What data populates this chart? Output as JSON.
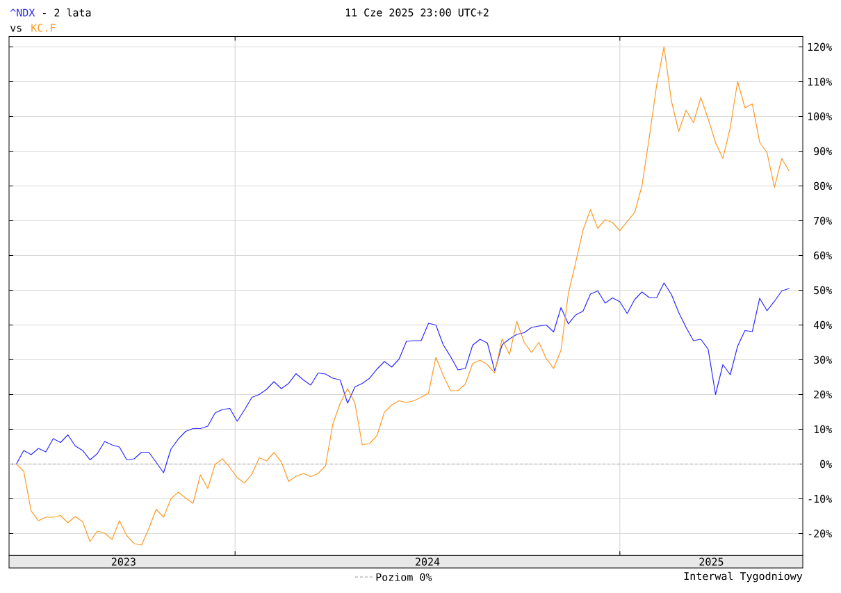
{
  "chart_data": {
    "type": "line",
    "title": "- 2 lata",
    "annotations": [
      "vs",
      "11 Cze 2025 23:00 UTC+2",
      "Interwal Tygodniowy"
    ],
    "x": [
      "2023-06-07",
      "2023-06-14",
      "2023-06-21",
      "2023-06-28",
      "2023-07-05",
      "2023-07-12",
      "2023-07-19",
      "2023-07-26",
      "2023-08-02",
      "2023-08-09",
      "2023-08-16",
      "2023-08-23",
      "2023-08-30",
      "2023-09-06",
      "2023-09-13",
      "2023-09-20",
      "2023-09-27",
      "2023-10-04",
      "2023-10-11",
      "2023-10-18",
      "2023-10-25",
      "2023-11-01",
      "2023-11-08",
      "2023-11-15",
      "2023-11-22",
      "2023-11-29",
      "2023-12-06",
      "2023-12-13",
      "2023-12-20",
      "2023-12-27",
      "2024-01-03",
      "2024-01-10",
      "2024-01-17",
      "2024-01-24",
      "2024-01-31",
      "2024-02-07",
      "2024-02-14",
      "2024-02-21",
      "2024-02-28",
      "2024-03-06",
      "2024-03-13",
      "2024-03-20",
      "2024-03-27",
      "2024-04-03",
      "2024-04-10",
      "2024-04-17",
      "2024-04-24",
      "2024-05-01",
      "2024-05-08",
      "2024-05-15",
      "2024-05-22",
      "2024-05-29",
      "2024-06-05",
      "2024-06-12",
      "2024-06-19",
      "2024-06-26",
      "2024-07-03",
      "2024-07-10",
      "2024-07-17",
      "2024-07-24",
      "2024-07-31",
      "2024-08-07",
      "2024-08-14",
      "2024-08-21",
      "2024-08-28",
      "2024-09-04",
      "2024-09-11",
      "2024-09-18",
      "2024-09-25",
      "2024-10-02",
      "2024-10-09",
      "2024-10-16",
      "2024-10-23",
      "2024-10-30",
      "2024-11-06",
      "2024-11-13",
      "2024-11-20",
      "2024-11-27",
      "2024-12-04",
      "2024-12-11",
      "2024-12-18",
      "2024-12-25",
      "2025-01-01",
      "2025-01-08",
      "2025-01-15",
      "2025-01-22",
      "2025-01-29",
      "2025-02-05",
      "2025-02-12",
      "2025-02-19",
      "2025-02-26",
      "2025-03-05",
      "2025-03-12",
      "2025-03-19",
      "2025-03-26",
      "2025-04-02",
      "2025-04-09",
      "2025-04-16",
      "2025-04-23",
      "2025-04-30",
      "2025-05-07",
      "2025-05-14",
      "2025-05-21",
      "2025-05-28",
      "2025-06-04",
      "2025-06-11"
    ],
    "series": [
      {
        "name": "^NDX",
        "color": "#2b2bff",
        "values": [
          0,
          3.9,
          2.7,
          4.5,
          3.5,
          7.3,
          6.2,
          8.4,
          5.2,
          3.9,
          1.2,
          3.0,
          6.5,
          5.5,
          4.9,
          1.2,
          1.5,
          3.4,
          3.4,
          0.5,
          -2.5,
          4.3,
          7.2,
          9.4,
          10.2,
          10.2,
          10.9,
          14.7,
          15.7,
          16.0,
          12.3,
          15.6,
          19.2,
          20.0,
          21.5,
          23.7,
          21.7,
          23.2,
          26.0,
          24.2,
          22.7,
          26.2,
          25.9,
          24.7,
          24.2,
          17.5,
          22.2,
          23.2,
          24.7,
          27.3,
          29.5,
          27.9,
          30.2,
          35.3,
          35.5,
          35.5,
          40.5,
          40.0,
          34.3,
          30.9,
          27.1,
          27.5,
          34.2,
          35.9,
          34.8,
          26.8,
          34.3,
          36.0,
          37.3,
          37.8,
          39.3,
          39.7,
          40.0,
          38.0,
          45.0,
          40.3,
          42.9,
          44.0,
          48.9,
          49.8,
          46.3,
          47.8,
          46.7,
          43.3,
          47.3,
          49.5,
          47.9,
          47.9,
          52.1,
          48.8,
          43.6,
          39.3,
          35.5,
          35.9,
          33.0,
          20.0,
          28.6,
          25.7,
          33.9,
          38.4,
          38.1,
          47.7,
          44.1,
          46.8,
          49.8,
          50.5
        ]
      },
      {
        "name": "KC.F",
        "color": "#ff9922",
        "values": [
          0,
          -2.1,
          -13.5,
          -16.3,
          -15.3,
          -15.3,
          -14.8,
          -16.9,
          -15.1,
          -16.6,
          -22.3,
          -19.3,
          -19.9,
          -21.7,
          -16.3,
          -20.6,
          -22.9,
          -23.3,
          -18.5,
          -13.0,
          -15.3,
          -10.0,
          -8.1,
          -9.8,
          -11.3,
          -3.1,
          -7.0,
          -0.1,
          1.5,
          -1.0,
          -3.9,
          -5.5,
          -2.9,
          1.8,
          0.9,
          3.3,
          0.6,
          -5.0,
          -3.5,
          -2.7,
          -3.6,
          -2.7,
          -0.5,
          11.5,
          17.5,
          21.7,
          17.5,
          5.5,
          5.9,
          8.2,
          14.9,
          17.0,
          18.2,
          17.7,
          18.2,
          19.2,
          20.4,
          30.7,
          25.5,
          21.1,
          21.1,
          23.0,
          28.9,
          29.9,
          28.6,
          26.2,
          36.0,
          31.5,
          41.0,
          35.0,
          32.1,
          35.0,
          30.3,
          27.5,
          32.7,
          49.0,
          58.0,
          67.3,
          73.2,
          67.8,
          70.3,
          69.5,
          67.1,
          69.8,
          72.3,
          80.0,
          94.0,
          109.0,
          120.0,
          104.5,
          95.7,
          101.8,
          98.2,
          105.4,
          99.3,
          92.5,
          87.9,
          96.8,
          110.0,
          102.5,
          103.6,
          92.5,
          89.6,
          79.6,
          87.9,
          84.3
        ]
      }
    ],
    "xlim": [
      "2023-05-31",
      "2025-06-24"
    ],
    "xticks": [
      {
        "value": "2023-09-17",
        "label": "2023"
      },
      {
        "value": "2024-01-01",
        "label": null
      },
      {
        "value": "2024-07-02",
        "label": "2024"
      },
      {
        "value": "2025-01-01",
        "label": null
      },
      {
        "value": "2025-03-29",
        "label": "2025"
      }
    ],
    "ylim": [
      -26.3,
      123
    ],
    "yticks": [
      {
        "value": -20,
        "label": "-20%"
      },
      {
        "value": -10,
        "label": "-10%"
      },
      {
        "value": 0,
        "label": "0%"
      },
      {
        "value": 10,
        "label": "10%"
      },
      {
        "value": 20,
        "label": "20%"
      },
      {
        "value": 30,
        "label": "30%"
      },
      {
        "value": 40,
        "label": "40%"
      },
      {
        "value": 50,
        "label": "50%"
      },
      {
        "value": 60,
        "label": "60%"
      },
      {
        "value": 70,
        "label": "70%"
      },
      {
        "value": 80,
        "label": "80%"
      },
      {
        "value": 90,
        "label": "90%"
      },
      {
        "value": 100,
        "label": "100%"
      },
      {
        "value": 110,
        "label": "110%"
      },
      {
        "value": 120,
        "label": "120%"
      }
    ],
    "ref_lines": [
      {
        "axis": "y",
        "value": 0,
        "label": "Poziom 0%",
        "color": "#999999",
        "line_style": "dashed"
      }
    ],
    "grid": true,
    "legend": "bottom",
    "line_style": "solid"
  }
}
